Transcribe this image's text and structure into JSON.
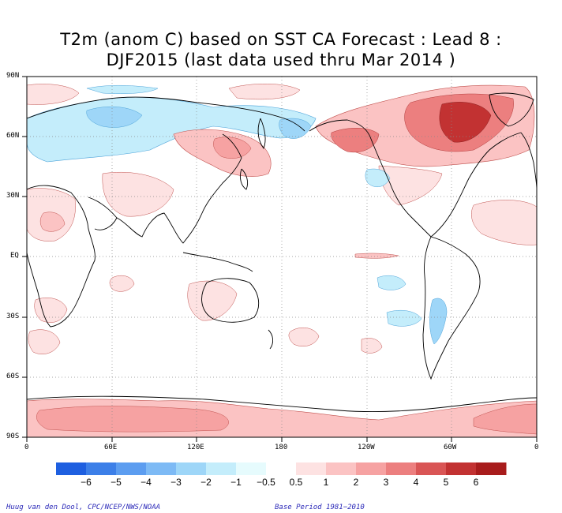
{
  "title": {
    "line1": "T2m (anom C) based on SST CA Forecast : Lead 8 :",
    "line2": "DJF2015 (last data used thru Mar 2014 )"
  },
  "axes": {
    "lat_labels": [
      "90N",
      "60N",
      "30N",
      "EQ",
      "30S",
      "60S",
      "90S"
    ],
    "lon_labels": [
      "0",
      "60E",
      "120E",
      "180",
      "120W",
      "60W",
      "0"
    ]
  },
  "colorbar": {
    "tick_labels": [
      "−6",
      "−5",
      "−4",
      "−3",
      "−2",
      "−1",
      "−0.5",
      "0.5",
      "1",
      "2",
      "3",
      "4",
      "5",
      "6"
    ],
    "colors": [
      "#1e5fe0",
      "#3c7fe8",
      "#5c9df0",
      "#7dbaf5",
      "#9ed6f8",
      "#c4edfb",
      "#e6fbfd",
      "#ffffff",
      "#fde2e2",
      "#fbc3c3",
      "#f6a2a2",
      "#ec7f7f",
      "#d95555",
      "#c23232",
      "#a81c1c"
    ]
  },
  "credits": {
    "left": "Huug van den Dool, CPC/NCEP/NWS/NOAA",
    "right": "Base Period 1981−2010"
  }
}
